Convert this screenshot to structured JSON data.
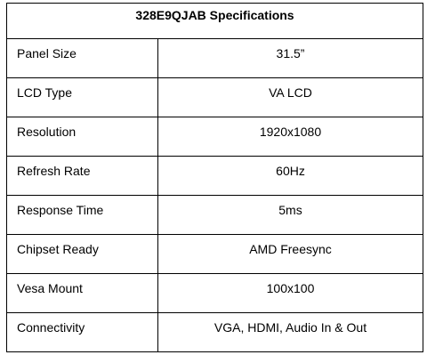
{
  "table": {
    "title": "328E9QJAB Specifications",
    "rows": [
      {
        "label": "Panel Size",
        "value": "31.5”"
      },
      {
        "label": "LCD Type",
        "value": "VA LCD"
      },
      {
        "label": "Resolution",
        "value": "1920x1080"
      },
      {
        "label": "Refresh Rate",
        "value": "60Hz"
      },
      {
        "label": "Response Time",
        "value": "5ms"
      },
      {
        "label": "Chipset Ready",
        "value": "AMD Freesync"
      },
      {
        "label": "Vesa Mount",
        "value": "100x100"
      },
      {
        "label": "Connectivity",
        "value": "VGA, HDMI, Audio In & Out"
      }
    ]
  }
}
